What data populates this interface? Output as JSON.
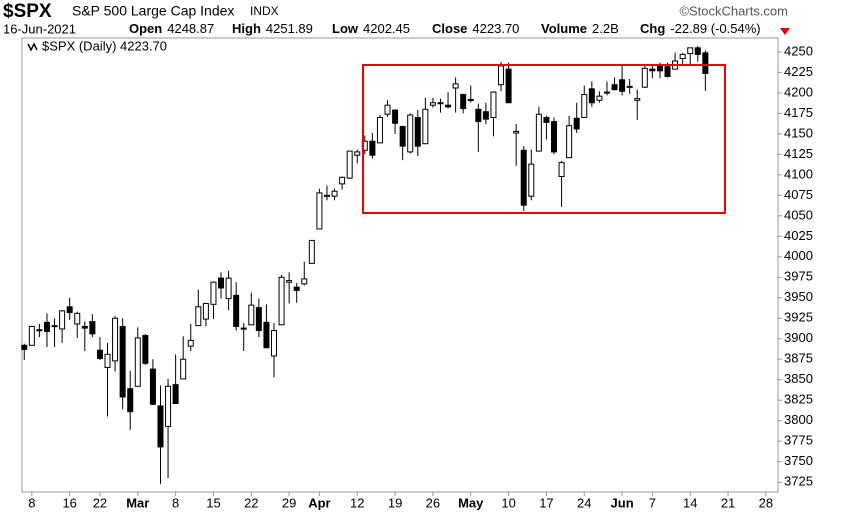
{
  "header": {
    "symbol": "$SPX",
    "name": "S&P 500 Large Cap Index",
    "exchange": "INDX",
    "brand": "©StockCharts.com",
    "date": "16-Jun-2021",
    "stats": [
      {
        "label": "Open",
        "value": "4248.87"
      },
      {
        "label": "High",
        "value": "4251.89"
      },
      {
        "label": "Low",
        "value": "4202.45"
      },
      {
        "label": "Close",
        "value": "4223.70"
      },
      {
        "label": "Volume",
        "value": "2.2B"
      },
      {
        "label": "Chg",
        "value": "-22.89 (-0.54%)"
      }
    ]
  },
  "chart_data": {
    "type": "candlestick",
    "legend": "$SPX (Daily) 4223.70",
    "up_color": "#ffffff",
    "down_color": "#000000",
    "open": [
      3892,
      3892,
      3910,
      3920,
      3916,
      3912,
      3939,
      3918,
      3915,
      3921,
      3886,
      3865,
      3873,
      3915,
      3839,
      3842,
      3904,
      3863,
      3818,
      3793,
      3844,
      3851,
      3891,
      3916,
      3924,
      3942,
      3974,
      3949,
      3953,
      3913,
      3917,
      3938,
      3920,
      3879,
      3917,
      3969,
      3963,
      3967,
      3992,
      4034,
      4075,
      4074,
      4089,
      4096,
      4124,
      4130,
      4141,
      4139,
      4174,
      4179,
      4159,
      4128,
      4170,
      4138,
      4185,
      4188,
      4185,
      4206,
      4198,
      4192,
      4180,
      4177,
      4170,
      4210,
      4229,
      4151,
      4130,
      4074,
      4129,
      4170,
      4165,
      4098,
      4121,
      4169,
      4170,
      4205,
      4191,
      4201,
      4210,
      4216,
      4207,
      4191,
      4207,
      4229,
      4233,
      4232,
      4229,
      4242,
      4248,
      4255,
      4248.87
    ],
    "high": [
      3894,
      3916,
      3918,
      3931,
      3925,
      3935,
      3950,
      3933,
      3921,
      3930,
      3902,
      3895,
      3928,
      3925,
      3861,
      3914,
      3906,
      3875,
      3843,
      3851,
      3881,
      3903,
      3918,
      3960,
      3944,
      3970,
      3981,
      3983,
      3969,
      3919,
      3956,
      3949,
      3942,
      3919,
      3978,
      3981,
      3968,
      3994,
      4020,
      4083,
      4087,
      4083,
      4098,
      4129,
      4131,
      4148,
      4151,
      4173,
      4191,
      4180,
      4160,
      4175,
      4179,
      4194,
      4194,
      4193,
      4201,
      4219,
      4199,
      4209,
      4187,
      4188,
      4202,
      4238,
      4237,
      4162,
      4135,
      4131,
      4183,
      4172,
      4170,
      4117,
      4172,
      4188,
      4209,
      4214,
      4202,
      4214,
      4219,
      4234,
      4217,
      4204,
      4234,
      4233,
      4237,
      4237,
      4249,
      4249,
      4255,
      4257,
      4251.89
    ],
    "low": [
      3874,
      3892,
      3902,
      3890,
      3890,
      3895,
      3923,
      3901,
      3885,
      3902,
      3874,
      3805,
      3860,
      3814,
      3789,
      3842,
      3868,
      3819,
      3723,
      3730,
      3821,
      3851,
      3885,
      3916,
      3915,
      3924,
      3949,
      3935,
      3910,
      3885,
      3917,
      3902,
      3889,
      3853,
      3917,
      3943,
      3944,
      3965,
      3992,
      4034,
      4069,
      4069,
      4082,
      4095,
      4114,
      4125,
      4120,
      4139,
      4171,
      4150,
      4118,
      4126,
      4123,
      4138,
      4182,
      4176,
      4181,
      4176,
      4175,
      4188,
      4128,
      4162,
      4147,
      4202,
      4188,
      4111,
      4056,
      4069,
      4129,
      4143,
      4125,
      4061,
      4121,
      4151,
      4170,
      4183,
      4188,
      4197,
      4203,
      4197,
      4199,
      4167,
      4206,
      4218,
      4218,
      4219,
      4229,
      4233,
      4234,
      4238,
      4202.45
    ],
    "close": [
      3887,
      3915,
      3911,
      3909,
      3916,
      3934,
      3932,
      3931,
      3913,
      3906,
      3876,
      3881,
      3925,
      3829,
      3811,
      3901,
      3870,
      3820,
      3768,
      3842,
      3821,
      3875,
      3898,
      3939,
      3943,
      3969,
      3962,
      3974,
      3915,
      3913,
      3941,
      3910,
      3889,
      3910,
      3975,
      3971,
      3959,
      3973,
      4020,
      4078,
      4074,
      4080,
      4097,
      4129,
      4128,
      4141,
      4124,
      4170,
      4185,
      4163,
      4135,
      4173,
      4135,
      4180,
      4188,
      4187,
      4183,
      4211,
      4181,
      4192,
      4165,
      4168,
      4201,
      4233,
      4188,
      4153,
      4063,
      4113,
      4174,
      4164,
      4128,
      4115,
      4160,
      4156,
      4198,
      4188,
      4196,
      4201,
      4204,
      4202,
      4208,
      4193,
      4230,
      4227,
      4227,
      4220,
      4239,
      4247,
      4255,
      4247,
      4223.7
    ],
    "xlim": [
      -0.3,
      99.6
    ],
    "ylim": [
      3713,
      4267
    ],
    "xticks": [
      {
        "value": 1,
        "label": "8"
      },
      {
        "value": 6,
        "label": "16"
      },
      {
        "value": 10,
        "label": "22"
      },
      {
        "value": 15,
        "label": "Mar"
      },
      {
        "value": 20,
        "label": "8"
      },
      {
        "value": 25,
        "label": "15"
      },
      {
        "value": 30,
        "label": "22"
      },
      {
        "value": 35,
        "label": "29"
      },
      {
        "value": 39,
        "label": "Apr"
      },
      {
        "value": 44,
        "label": "12"
      },
      {
        "value": 49,
        "label": "19"
      },
      {
        "value": 54,
        "label": "26"
      },
      {
        "value": 59,
        "label": "May"
      },
      {
        "value": 64,
        "label": "10"
      },
      {
        "value": 69,
        "label": "17"
      },
      {
        "value": 74,
        "label": "24"
      },
      {
        "value": 79,
        "label": "Jun"
      },
      {
        "value": 83,
        "label": "7"
      },
      {
        "value": 88,
        "label": "14"
      },
      {
        "value": 93,
        "label": "21"
      },
      {
        "value": 98,
        "label": "28"
      }
    ],
    "yticks": [
      3725,
      3750,
      3775,
      3800,
      3825,
      3850,
      3875,
      3900,
      3925,
      3950,
      3975,
      4000,
      4025,
      4050,
      4075,
      4100,
      4125,
      4150,
      4175,
      4200,
      4225,
      4250
    ]
  }
}
